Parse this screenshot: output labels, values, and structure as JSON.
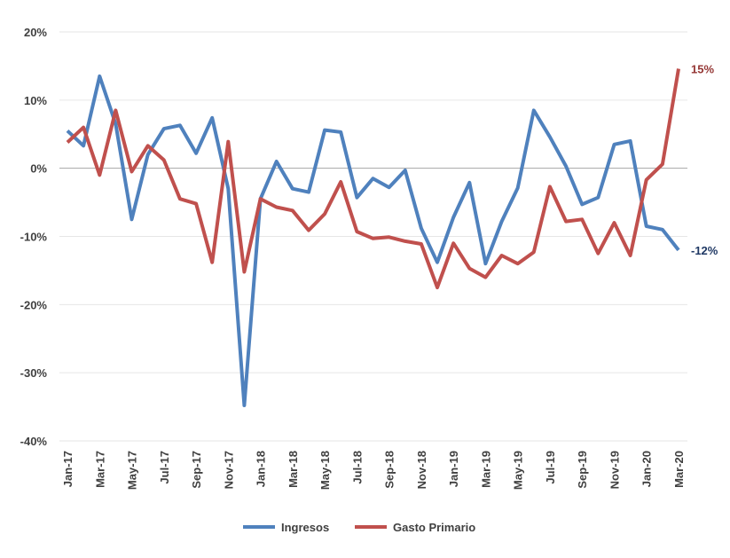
{
  "chart_data": {
    "type": "line",
    "categories": [
      "Jan-17",
      null,
      "Mar-17",
      null,
      "May-17",
      null,
      "Jul-17",
      null,
      "Sep-17",
      null,
      "Nov-17",
      null,
      "Jan-18",
      null,
      "Mar-18",
      null,
      "May-18",
      null,
      "Jul-18",
      null,
      "Sep-18",
      null,
      "Nov-18",
      null,
      "Jan-19",
      null,
      "Mar-19",
      null,
      "May-19",
      null,
      "Jul-19",
      null,
      "Sep-19",
      null,
      "Nov-19",
      null,
      "Jan-20",
      null,
      "Mar-20"
    ],
    "ylim": [
      -40,
      20
    ],
    "yticks": [
      {
        "value": -40,
        "label": "-40%"
      },
      {
        "value": -30,
        "label": "-30%"
      },
      {
        "value": -20,
        "label": "-20%"
      },
      {
        "value": -10,
        "label": "-10%"
      },
      {
        "value": 0,
        "label": "0%"
      },
      {
        "value": 10,
        "label": "10%"
      },
      {
        "value": 20,
        "label": "20%"
      }
    ],
    "grid": true,
    "legend": "bottom",
    "series": [
      {
        "name": "Ingresos",
        "color": "#4f81bd",
        "values": [
          5.5,
          3.3,
          13.5,
          6.5,
          -7.5,
          2,
          5.8,
          6.3,
          2.2,
          7.4,
          -3,
          -34.8,
          -4.5,
          1,
          -3,
          -3.5,
          5.6,
          5.3,
          -4.3,
          -1.5,
          -2.8,
          -0.3,
          -8.8,
          -13.8,
          -7.2,
          -2.1,
          -14,
          -7.8,
          -2.9,
          8.5,
          4.6,
          0.3,
          -5.3,
          -4.3,
          3.5,
          4,
          -8.5,
          -9,
          -12
        ],
        "value_labels": [
          null,
          null,
          null,
          null,
          null,
          null,
          null,
          null,
          null,
          null,
          null,
          null,
          null,
          null,
          null,
          null,
          null,
          null,
          null,
          null,
          null,
          null,
          null,
          null,
          null,
          null,
          null,
          null,
          null,
          null,
          null,
          null,
          null,
          null,
          null,
          null,
          null,
          null,
          "-12%"
        ]
      },
      {
        "name": "Gasto Primario",
        "color": "#c0504d",
        "values": [
          3.8,
          6,
          -1,
          8.5,
          -0.5,
          3.3,
          1.2,
          -4.5,
          -5.2,
          -13.8,
          3.9,
          -15.2,
          -4.5,
          -5.7,
          -6.2,
          -9.1,
          -6.7,
          -2,
          -9.3,
          -10.3,
          -10.1,
          -10.7,
          -11.1,
          -17.5,
          -11,
          -14.7,
          -16,
          -12.8,
          -14,
          -12.3,
          -2.7,
          -7.8,
          -7.5,
          -12.5,
          -8,
          -12.8,
          -1.7,
          0.6,
          14.6
        ],
        "value_labels": [
          null,
          null,
          null,
          null,
          null,
          null,
          null,
          null,
          null,
          null,
          null,
          null,
          null,
          null,
          null,
          null,
          null,
          null,
          null,
          null,
          null,
          null,
          null,
          null,
          null,
          null,
          null,
          null,
          null,
          null,
          null,
          null,
          null,
          null,
          null,
          null,
          null,
          null,
          "15%"
        ]
      }
    ]
  }
}
